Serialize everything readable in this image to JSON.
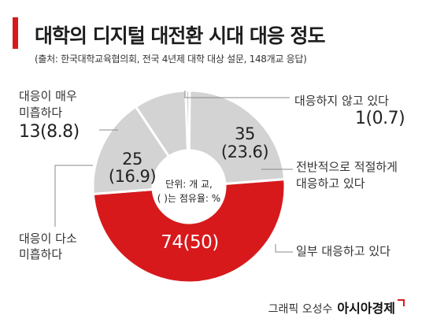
{
  "header": {
    "title": "대학의 디지털 대전환 시대 대응 정도",
    "subtitle": "(출처: 한국대학교육협의회, 전국 4년제 대학 대상 설문, 148개교 응답)"
  },
  "center_note": {
    "line1": "단위: 개 교,",
    "line2": "( )는 점유율: %"
  },
  "credit": {
    "text": "그래픽 오성수",
    "brand": "아시아경제"
  },
  "colors": {
    "accent": "#d7191c",
    "segment_grey": "#d3d3d3",
    "leader": "#888888"
  },
  "chart_data": {
    "type": "pie",
    "donut": true,
    "unit_note": "단위: 개 교, ( )는 점유율: %",
    "slices": [
      {
        "label": "대응하지 않고 있다",
        "value": 1,
        "share": 0.7,
        "value_text": "1(0.7)"
      },
      {
        "label": "전반적으로 적절하게 대응하고 있다",
        "value": 35,
        "share": 23.6,
        "value_text_1": "35",
        "value_text_2": "(23.6)"
      },
      {
        "label": "일부 대응하고 있다",
        "value": 74,
        "share": 50,
        "value_text": "74(50)"
      },
      {
        "label": "대응이 다소 미흡하다",
        "value": 25,
        "share": 16.9,
        "value_text_1": "25",
        "value_text_2": "(16.9)"
      },
      {
        "label": "대응이 매우 미흡하다",
        "value": 13,
        "share": 8.8,
        "value_text": "13(8.8)"
      }
    ],
    "label_lines": {
      "s0": [
        "대응하지 않고 있다"
      ],
      "s1": [
        "전반적으로 적절하게",
        "대응하고 있다"
      ],
      "s2": [
        "일부 대응하고 있다"
      ],
      "s3": [
        "대응이 다소",
        "미흡하다"
      ],
      "s4": [
        "대응이 매우",
        "미흡하다"
      ]
    }
  }
}
